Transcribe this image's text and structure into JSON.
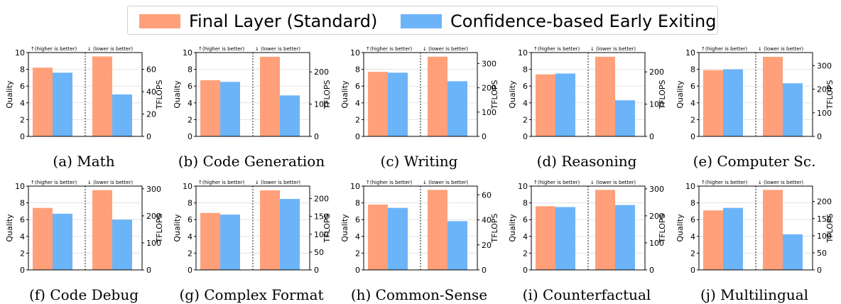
{
  "legend": {
    "items": [
      {
        "label": "Final Layer (Standard)",
        "color": "#FFA07A"
      },
      {
        "label": "Confidence-based Early Exiting",
        "color": "#6CB4F8"
      }
    ]
  },
  "colors": {
    "standard": "#FFA07A",
    "early_exit": "#6CB4F8",
    "grid": "#e3e3e3"
  },
  "chart_data": [
    {
      "type": "bar",
      "caption": "(a) Math",
      "quality_label": "Quality",
      "tflops_label": "TFLOPS",
      "higher_note": "↑(higher is better)",
      "lower_note": "↓ (lower is better)",
      "quality_ylim": [
        0,
        10
      ],
      "quality_ticks": [
        0,
        2,
        4,
        6,
        8,
        10
      ],
      "tflops_ylim": [
        0,
        75
      ],
      "tflops_ticks": [
        0,
        20,
        40,
        60
      ],
      "series": [
        {
          "name": "Final Layer (Standard)",
          "quality": 8.2,
          "tflops": 71.5
        },
        {
          "name": "Confidence-based Early Exiting",
          "quality": 7.6,
          "tflops": 37.5
        }
      ]
    },
    {
      "type": "bar",
      "caption": "(b) Code Generation",
      "quality_label": "Quality",
      "tflops_label": "TFLOPS",
      "higher_note": "↑(higher is better)",
      "lower_note": "↓ (lower is better)",
      "quality_ylim": [
        0,
        10
      ],
      "quality_ticks": [
        0,
        2,
        4,
        6,
        8,
        10
      ],
      "tflops_ylim": [
        0,
        260
      ],
      "tflops_ticks": [
        0,
        100,
        200
      ],
      "series": [
        {
          "name": "Final Layer (Standard)",
          "quality": 6.7,
          "tflops": 247
        },
        {
          "name": "Confidence-based Early Exiting",
          "quality": 6.5,
          "tflops": 127
        }
      ]
    },
    {
      "type": "bar",
      "caption": "(c) Writing",
      "quality_label": "Quality",
      "tflops_label": "TFLOPS",
      "higher_note": "↑(higher is better)",
      "lower_note": "↓ (lower is better)",
      "quality_ylim": [
        0,
        10
      ],
      "quality_ticks": [
        0,
        2,
        4,
        6,
        8,
        10
      ],
      "tflops_ylim": [
        0,
        345
      ],
      "tflops_ticks": [
        0,
        100,
        200,
        300
      ],
      "series": [
        {
          "name": "Final Layer (Standard)",
          "quality": 7.7,
          "tflops": 328
        },
        {
          "name": "Confidence-based Early Exiting",
          "quality": 7.6,
          "tflops": 227
        }
      ]
    },
    {
      "type": "bar",
      "caption": "(d) Reasoning",
      "quality_label": "Quality",
      "tflops_label": "TFLOPS",
      "higher_note": "↑(higher is better)",
      "lower_note": "↓ (lower is better)",
      "quality_ylim": [
        0,
        10
      ],
      "quality_ticks": [
        0,
        2,
        4,
        6,
        8,
        10
      ],
      "tflops_ylim": [
        0,
        260
      ],
      "tflops_ticks": [
        0,
        100,
        200
      ],
      "series": [
        {
          "name": "Final Layer (Standard)",
          "quality": 7.4,
          "tflops": 247
        },
        {
          "name": "Confidence-based Early Exiting",
          "quality": 7.5,
          "tflops": 112
        }
      ]
    },
    {
      "type": "bar",
      "caption": "(e) Computer Sc.",
      "quality_label": "Quality",
      "tflops_label": "TFLOPS",
      "higher_note": "↑(higher is better)",
      "lower_note": "↓ (lower is better)",
      "quality_ylim": [
        0,
        10
      ],
      "quality_ticks": [
        0,
        2,
        4,
        6,
        8,
        10
      ],
      "tflops_ylim": [
        0,
        355
      ],
      "tflops_ticks": [
        0,
        100,
        200,
        300
      ],
      "series": [
        {
          "name": "Final Layer (Standard)",
          "quality": 7.9,
          "tflops": 337
        },
        {
          "name": "Confidence-based Early Exiting",
          "quality": 8.0,
          "tflops": 225
        }
      ]
    },
    {
      "type": "bar",
      "caption": "(f) Code Debug",
      "quality_label": "Quality",
      "tflops_label": "TFLOPS",
      "higher_note": "↑(higher is better)",
      "lower_note": "↓ (lower is better)",
      "quality_ylim": [
        0,
        10
      ],
      "quality_ticks": [
        0,
        2,
        4,
        6,
        8,
        10
      ],
      "tflops_ylim": [
        0,
        310
      ],
      "tflops_ticks": [
        0,
        100,
        200,
        300
      ],
      "series": [
        {
          "name": "Final Layer (Standard)",
          "quality": 7.4,
          "tflops": 295
        },
        {
          "name": "Confidence-based Early Exiting",
          "quality": 6.7,
          "tflops": 186
        }
      ]
    },
    {
      "type": "bar",
      "caption": "(g) Complex Format",
      "quality_label": "Quality",
      "tflops_label": "TFLOPS",
      "higher_note": "↑(higher is better)",
      "lower_note": "↓ (lower is better)",
      "quality_ylim": [
        0,
        10
      ],
      "quality_ticks": [
        0,
        2,
        4,
        6,
        8,
        10
      ],
      "tflops_ylim": [
        0,
        235
      ],
      "tflops_ticks": [
        0,
        50,
        100,
        150,
        200
      ],
      "series": [
        {
          "name": "Final Layer (Standard)",
          "quality": 6.8,
          "tflops": 223
        },
        {
          "name": "Confidence-based Early Exiting",
          "quality": 6.6,
          "tflops": 199
        }
      ]
    },
    {
      "type": "bar",
      "caption": "(h) Common-Sense",
      "quality_label": "Quality",
      "tflops_label": "TFLOPS",
      "higher_note": "↑(higher is better)",
      "lower_note": "↓ (lower is better)",
      "quality_ylim": [
        0,
        10
      ],
      "quality_ticks": [
        0,
        2,
        4,
        6,
        8,
        10
      ],
      "tflops_ylim": [
        0,
        67
      ],
      "tflops_ticks": [
        0,
        20,
        40,
        60
      ],
      "series": [
        {
          "name": "Final Layer (Standard)",
          "quality": 7.8,
          "tflops": 64
        },
        {
          "name": "Confidence-based Early Exiting",
          "quality": 7.4,
          "tflops": 39
        }
      ]
    },
    {
      "type": "bar",
      "caption": "(i) Counterfactual",
      "quality_label": "Quality",
      "tflops_label": "TFLOPS",
      "higher_note": "↑(higher is better)",
      "lower_note": "↓ (lower is better)",
      "quality_ylim": [
        0,
        10
      ],
      "quality_ticks": [
        0,
        2,
        4,
        6,
        8,
        10
      ],
      "tflops_ylim": [
        0,
        310
      ],
      "tflops_ticks": [
        0,
        100,
        200,
        300
      ],
      "series": [
        {
          "name": "Final Layer (Standard)",
          "quality": 7.6,
          "tflops": 296
        },
        {
          "name": "Confidence-based Early Exiting",
          "quality": 7.5,
          "tflops": 240
        }
      ]
    },
    {
      "type": "bar",
      "caption": "(j) Multilingual",
      "quality_label": "Quality",
      "tflops_label": "TFLOPS",
      "higher_note": "↑(higher is better)",
      "lower_note": "↓ (lower is better)",
      "quality_ylim": [
        0,
        10
      ],
      "quality_ticks": [
        0,
        2,
        4,
        6,
        8,
        10
      ],
      "tflops_ylim": [
        0,
        245
      ],
      "tflops_ticks": [
        0,
        50,
        100,
        150,
        200
      ],
      "series": [
        {
          "name": "Final Layer (Standard)",
          "quality": 7.1,
          "tflops": 234
        },
        {
          "name": "Confidence-based Early Exiting",
          "quality": 7.4,
          "tflops": 104
        }
      ]
    }
  ]
}
